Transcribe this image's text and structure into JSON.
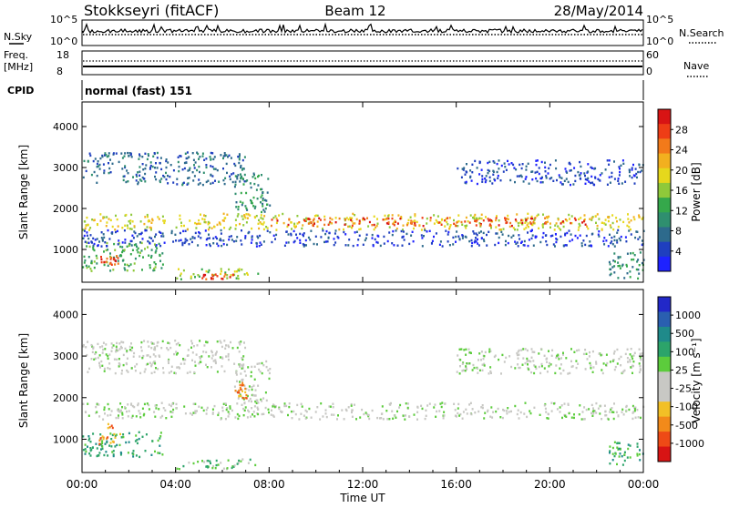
{
  "header": {
    "station": "Stokkseyri (fitACF)",
    "beam": "Beam 12",
    "date": "28/May/2014"
  },
  "status_panels": {
    "nsky_label": "N.Sky",
    "nsky_ticks": [
      "10^5",
      "10^0"
    ],
    "nsearch_label": "N.Search",
    "nsearch_ticks": [
      "10^5",
      "10^0"
    ],
    "freq_label": "Freq.",
    "freq_unit": "[MHz]",
    "freq_ticks": [
      "18",
      "8"
    ],
    "nave_label": "Nave",
    "nave_ticks": [
      "60",
      "0"
    ],
    "cpid_label": "CPID",
    "cpid_value": "normal (fast) 151"
  },
  "colors": {
    "power_scale": [
      "#1e22ff",
      "#1f3fbf",
      "#2d6a8c",
      "#2f8f6f",
      "#35a84b",
      "#8fc93a",
      "#e6d81c",
      "#f2b01f",
      "#f27a1a",
      "#ee3d16",
      "#d81414"
    ],
    "velocity_scale": [
      "#2228c8",
      "#2a5fb0",
      "#1f8a8a",
      "#2ca46a",
      "#5ccc3c",
      "#c8c8c4",
      "#c8c8c4",
      "#f2c026",
      "#f28a1a",
      "#ee4a16",
      "#d81414"
    ]
  },
  "chart_data": [
    {
      "type": "heatmap",
      "name": "power",
      "ylabel": "Slant Range [km]",
      "yticks": [
        "1000",
        "2000",
        "3000",
        "4000"
      ],
      "ylim": [
        200,
        4600
      ],
      "xlim_hours": [
        0,
        24
      ],
      "colorbar_label": "Power [dB]",
      "colorbar_ticks": [
        "4",
        "8",
        "12",
        "16",
        "20",
        "24",
        "28"
      ],
      "bands": [
        {
          "t0": 0.0,
          "t1": 24.0,
          "r0": 1500,
          "r1": 1900,
          "level": 6
        },
        {
          "t0": 8.0,
          "t1": 21.5,
          "r0": 1600,
          "r1": 1800,
          "level": 9
        },
        {
          "t0": 0.0,
          "t1": 3.5,
          "r0": 500,
          "r1": 1200,
          "level": 4
        },
        {
          "t0": 0.7,
          "t1": 1.6,
          "r0": 650,
          "r1": 900,
          "level": 9
        },
        {
          "t0": 4.0,
          "t1": 7.5,
          "r0": 300,
          "r1": 550,
          "level": 5
        },
        {
          "t0": 5.0,
          "t1": 6.5,
          "r0": 300,
          "r1": 420,
          "level": 9
        },
        {
          "t0": 0.0,
          "t1": 7.0,
          "r0": 2600,
          "r1": 3400,
          "level": 2
        },
        {
          "t0": 6.5,
          "t1": 8.0,
          "r0": 1900,
          "r1": 2900,
          "level": 3
        },
        {
          "t0": 16.0,
          "t1": 24.0,
          "r0": 2600,
          "r1": 3200,
          "level": 1
        },
        {
          "t0": 0.0,
          "t1": 24.0,
          "r0": 1100,
          "r1": 1500,
          "level": 1
        },
        {
          "t0": 22.5,
          "t1": 24.0,
          "r0": 300,
          "r1": 1000,
          "level": 3
        }
      ]
    },
    {
      "type": "heatmap",
      "name": "velocity",
      "ylabel": "Slant Range [km]",
      "yticks": [
        "1000",
        "2000",
        "3000",
        "4000"
      ],
      "ylim": [
        200,
        4600
      ],
      "xlim_hours": [
        0,
        24
      ],
      "xticks": [
        "00:00",
        "04:00",
        "08:00",
        "12:00",
        "16:00",
        "20:00",
        "00:00"
      ],
      "xlabel": "Time UT",
      "colorbar_label": "Velocity [m s⁻¹]",
      "colorbar_ticks": [
        "1000",
        "500",
        "100",
        "25",
        "-25",
        "-100",
        "-500",
        "-1000"
      ],
      "bands": [
        {
          "t0": 0.0,
          "t1": 24.0,
          "r0": 1500,
          "r1": 1900,
          "level": 5
        },
        {
          "t0": 0.0,
          "t1": 3.5,
          "r0": 600,
          "r1": 1200,
          "level": 3
        },
        {
          "t0": 0.7,
          "t1": 1.6,
          "r0": 900,
          "r1": 1400,
          "level": 8
        },
        {
          "t0": 4.0,
          "t1": 7.5,
          "r0": 300,
          "r1": 550,
          "level": 4
        },
        {
          "t0": 0.0,
          "t1": 7.0,
          "r0": 2600,
          "r1": 3400,
          "level": 5
        },
        {
          "t0": 6.5,
          "t1": 8.0,
          "r0": 1900,
          "r1": 2900,
          "level": 5
        },
        {
          "t0": 6.5,
          "t1": 7.0,
          "r0": 2000,
          "r1": 2400,
          "level": 8
        },
        {
          "t0": 16.0,
          "t1": 24.0,
          "r0": 2600,
          "r1": 3200,
          "level": 5
        },
        {
          "t0": 22.5,
          "t1": 24.0,
          "r0": 400,
          "r1": 1000,
          "level": 3
        }
      ]
    }
  ]
}
